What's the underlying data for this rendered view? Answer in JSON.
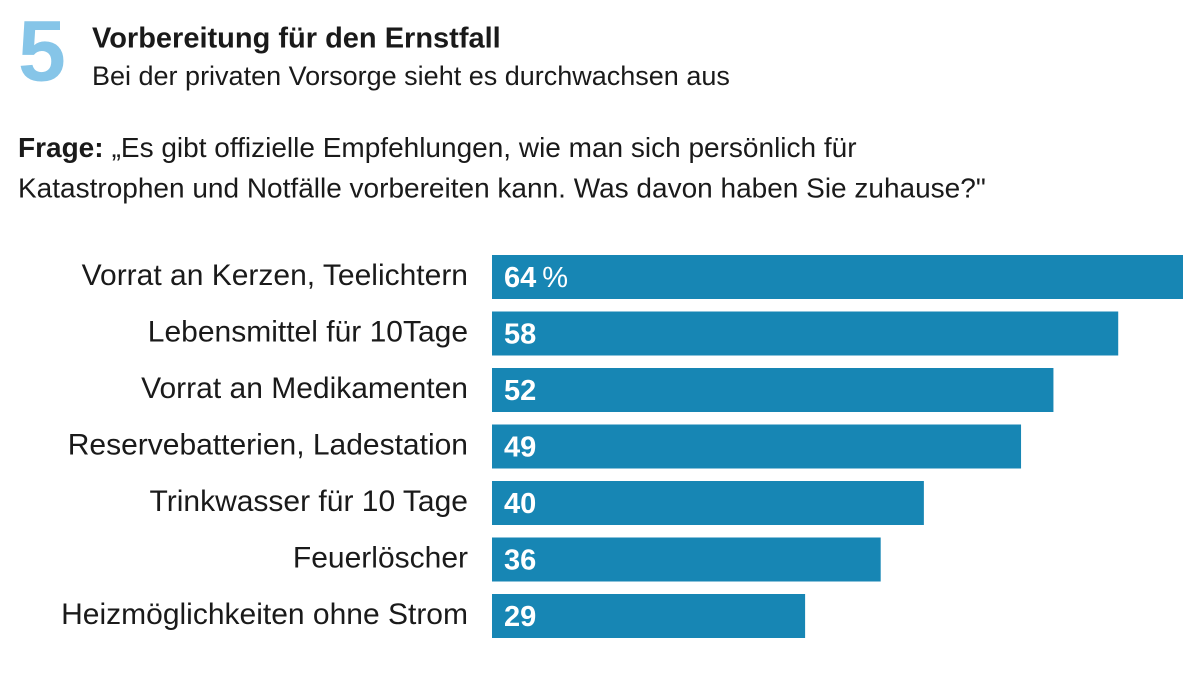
{
  "chart_data": {
    "type": "bar",
    "orientation": "horizontal",
    "number": "5",
    "title": "Vorbereitung für den Ernstfall",
    "subtitle": "Bei der privaten Vorsorge sieht es durchwachsen aus",
    "question_label": "Frage:",
    "question_lines": [
      "„Es gibt offizielle Empfehlungen, wie man sich persönlich für",
      "Katastrophen und Notfälle vorbereiten kann. Was davon haben Sie zuhause?\""
    ],
    "categories": [
      "Vorrat an Kerzen, Teelichtern",
      "Lebensmittel für 10Tage",
      "Vorrat an Medikamenten",
      "Reservebatterien, Ladestation",
      "Trinkwasser für 10 Tage",
      "Feuerlöscher",
      "Heizmöglichkeiten ohne Strom"
    ],
    "values": [
      64,
      58,
      52,
      49,
      40,
      36,
      29
    ],
    "unit": "%",
    "color": "#1786b4",
    "xlim": [
      0,
      64
    ]
  }
}
